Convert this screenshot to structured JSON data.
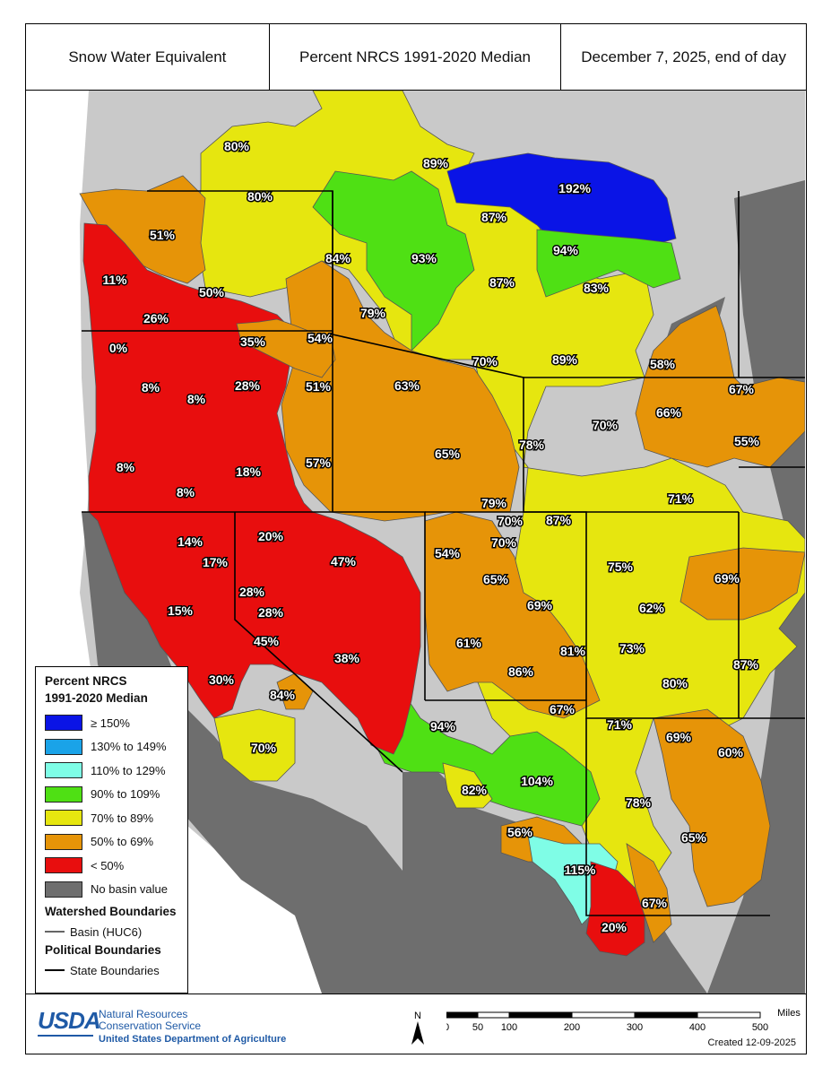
{
  "header": {
    "title": "Snow Water Equivalent",
    "subtitle": "Percent NRCS 1991-2020 Median",
    "date": "December 7, 2025, end of day"
  },
  "colors": {
    "ge150": "#0a14e6",
    "c130_149": "#1aa3e8",
    "c110_129": "#7ffde6",
    "c90_109": "#4fe014",
    "c70_89": "#e6e60f",
    "c50_69": "#e69408",
    "lt50": "#e80e0e",
    "no_value": "#6e6e6e",
    "outside": "#c9c9c9",
    "ocean": "#ffffff"
  },
  "basins": [
    {
      "label": "80%",
      "cls": "c70_89"
    },
    {
      "label": "89%",
      "cls": "c70_89"
    },
    {
      "label": "80%",
      "cls": "c70_89"
    },
    {
      "label": "192%",
      "cls": "ge150"
    },
    {
      "label": "51%",
      "cls": "c50_69"
    },
    {
      "label": "87%",
      "cls": "c70_89"
    },
    {
      "label": "84%",
      "cls": "c70_89"
    },
    {
      "label": "93%",
      "cls": "c90_109"
    },
    {
      "label": "94%",
      "cls": "c90_109"
    },
    {
      "label": "11%",
      "cls": "lt50"
    },
    {
      "label": "50%",
      "cls": "c50_69"
    },
    {
      "label": "87%",
      "cls": "c70_89"
    },
    {
      "label": "83%",
      "cls": "c70_89"
    },
    {
      "label": "26%",
      "cls": "lt50"
    },
    {
      "label": "79%",
      "cls": "c70_89"
    },
    {
      "label": "0%",
      "cls": "lt50"
    },
    {
      "label": "35%",
      "cls": "lt50"
    },
    {
      "label": "54%",
      "cls": "c50_69"
    },
    {
      "label": "70%",
      "cls": "c70_89"
    },
    {
      "label": "89%",
      "cls": "c70_89"
    },
    {
      "label": "58%",
      "cls": "c50_69"
    },
    {
      "label": "8%",
      "cls": "lt50"
    },
    {
      "label": "8%",
      "cls": "lt50"
    },
    {
      "label": "28%",
      "cls": "lt50"
    },
    {
      "label": "51%",
      "cls": "c50_69"
    },
    {
      "label": "63%",
      "cls": "c50_69"
    },
    {
      "label": "67%",
      "cls": "c50_69"
    },
    {
      "label": "66%",
      "cls": "c50_69"
    },
    {
      "label": "70%",
      "cls": "c70_89"
    },
    {
      "label": "55%",
      "cls": "c50_69"
    },
    {
      "label": "78%",
      "cls": "c70_89"
    },
    {
      "label": "8%",
      "cls": "lt50"
    },
    {
      "label": "18%",
      "cls": "lt50"
    },
    {
      "label": "57%",
      "cls": "c50_69"
    },
    {
      "label": "65%",
      "cls": "c50_69"
    },
    {
      "label": "8%",
      "cls": "lt50"
    },
    {
      "label": "71%",
      "cls": "c70_89"
    },
    {
      "label": "79%",
      "cls": "c70_89"
    },
    {
      "label": "70%",
      "cls": "c70_89"
    },
    {
      "label": "87%",
      "cls": "c70_89"
    },
    {
      "label": "70%",
      "cls": "c70_89"
    },
    {
      "label": "14%",
      "cls": "lt50"
    },
    {
      "label": "20%",
      "cls": "lt50"
    },
    {
      "label": "17%",
      "cls": "lt50"
    },
    {
      "label": "47%",
      "cls": "lt50"
    },
    {
      "label": "54%",
      "cls": "c50_69"
    },
    {
      "label": "65%",
      "cls": "c50_69"
    },
    {
      "label": "75%",
      "cls": "c70_89"
    },
    {
      "label": "69%",
      "cls": "c50_69"
    },
    {
      "label": "28%",
      "cls": "lt50"
    },
    {
      "label": "15%",
      "cls": "lt50"
    },
    {
      "label": "28%",
      "cls": "lt50"
    },
    {
      "label": "69%",
      "cls": "c50_69"
    },
    {
      "label": "62%",
      "cls": "c50_69"
    },
    {
      "label": "45%",
      "cls": "lt50"
    },
    {
      "label": "61%",
      "cls": "c50_69"
    },
    {
      "label": "81%",
      "cls": "c70_89"
    },
    {
      "label": "73%",
      "cls": "c70_89"
    },
    {
      "label": "38%",
      "cls": "lt50"
    },
    {
      "label": "87%",
      "cls": "c70_89"
    },
    {
      "label": "30%",
      "cls": "lt50"
    },
    {
      "label": "86%",
      "cls": "c70_89"
    },
    {
      "label": "80%",
      "cls": "c70_89"
    },
    {
      "label": "84%",
      "cls": "c70_89"
    },
    {
      "label": "67%",
      "cls": "c50_69"
    },
    {
      "label": "94%",
      "cls": "c90_109"
    },
    {
      "label": "71%",
      "cls": "c70_89"
    },
    {
      "label": "69%",
      "cls": "c50_69"
    },
    {
      "label": "70%",
      "cls": "c70_89"
    },
    {
      "label": "60%",
      "cls": "c50_69"
    },
    {
      "label": "104%",
      "cls": "c90_109"
    },
    {
      "label": "82%",
      "cls": "c70_89"
    },
    {
      "label": "78%",
      "cls": "c70_89"
    },
    {
      "label": "56%",
      "cls": "c50_69"
    },
    {
      "label": "65%",
      "cls": "c50_69"
    },
    {
      "label": "115%",
      "cls": "c110_129"
    },
    {
      "label": "67%",
      "cls": "c50_69"
    },
    {
      "label": "20%",
      "cls": "lt50"
    }
  ],
  "legend": {
    "title_line1": "Percent NRCS",
    "title_line2": "1991-2020 Median",
    "items": [
      {
        "label": "≥ 150%",
        "cls": "ge150"
      },
      {
        "label": "130% to 149%",
        "cls": "c130_149"
      },
      {
        "label": "110% to 129%",
        "cls": "c110_129"
      },
      {
        "label": "90% to 109%",
        "cls": "c90_109"
      },
      {
        "label": "70% to 89%",
        "cls": "c70_89"
      },
      {
        "label": "50% to 69%",
        "cls": "c50_69"
      },
      {
        "label": "< 50%",
        "cls": "lt50"
      },
      {
        "label": "No basin value",
        "cls": "no_value"
      }
    ],
    "watershed_title": "Watershed Boundaries",
    "watershed_item": "Basin (HUC6)",
    "political_title": "Political Boundaries",
    "political_item": "State Boundaries"
  },
  "footer": {
    "agency_abbr": "USDA",
    "agency_line1": "Natural Resources",
    "agency_line2": "Conservation Service",
    "department": "United States Department of Agriculture",
    "north": "N",
    "scale_unit": "Miles",
    "scale_ticks": [
      "0",
      "50",
      "100",
      "200",
      "300",
      "400",
      "500"
    ],
    "created": "Created 12-09-2025"
  }
}
